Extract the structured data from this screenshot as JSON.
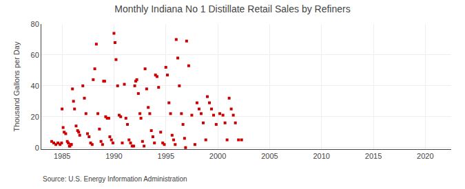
{
  "chart_data": {
    "type": "scatter",
    "title": "Monthly Indiana No 1 Distillate Retail Sales by Refiners",
    "ylabel": "Thousand Gallons per Day",
    "annotations": [
      "Source: U.S. Energy Information Administration"
    ],
    "color": "#cc0000",
    "marker": "square",
    "grid": true,
    "xlim": [
      1983.0,
      2022.5
    ],
    "ylim": [
      -1,
      80
    ],
    "xticks": [
      1985,
      1990,
      1995,
      2000,
      2005,
      2010,
      2015,
      2020
    ],
    "yticks": [
      0,
      20,
      40,
      60,
      80
    ],
    "x": [
      1984.0,
      1984.2,
      1984.4,
      1984.6,
      1984.8,
      1984.95,
      1985.0,
      1985.1,
      1985.2,
      1985.35,
      1985.5,
      1985.6,
      1985.7,
      1985.75,
      1985.85,
      1985.9,
      1986.0,
      1986.1,
      1986.2,
      1986.35,
      1986.5,
      1986.6,
      1986.7,
      1987.0,
      1987.15,
      1987.3,
      1987.45,
      1987.6,
      1987.75,
      1987.9,
      1988.0,
      1988.15,
      1988.3,
      1988.45,
      1988.6,
      1988.75,
      1988.9,
      1989.0,
      1989.1,
      1989.2,
      1989.35,
      1989.5,
      1989.6,
      1989.75,
      1989.9,
      1990.0,
      1990.1,
      1990.2,
      1990.35,
      1990.5,
      1990.65,
      1990.8,
      1991.0,
      1991.15,
      1991.3,
      1991.45,
      1991.6,
      1991.75,
      1991.9,
      1992.0,
      1992.1,
      1992.2,
      1992.35,
      1992.5,
      1992.6,
      1992.75,
      1992.9,
      1993.0,
      1993.15,
      1993.3,
      1993.45,
      1993.6,
      1993.75,
      1993.9,
      1994.0,
      1994.15,
      1994.3,
      1994.5,
      1994.7,
      1994.85,
      1995.0,
      1995.15,
      1995.3,
      1995.45,
      1995.6,
      1995.75,
      1995.9,
      1996.0,
      1996.15,
      1996.3,
      1996.5,
      1996.65,
      1996.8,
      1996.9,
      1997.0,
      1997.2,
      1997.5,
      1997.8,
      1998.0,
      1998.2,
      1998.4,
      1998.6,
      1998.85,
      1999.0,
      1999.2,
      1999.4,
      1999.6,
      1999.85,
      2000.2,
      2000.5,
      2000.7,
      2000.9,
      2001.1,
      2001.3,
      2001.5,
      2001.7,
      2002.0,
      2002.3
    ],
    "values": [
      4,
      3,
      2,
      3,
      2,
      3,
      25,
      13,
      10,
      9,
      4,
      3,
      1,
      1,
      2,
      2,
      38,
      30,
      25,
      14,
      11,
      10,
      8,
      40,
      32,
      22,
      9,
      7,
      3,
      2,
      44,
      51,
      67,
      22,
      12,
      4,
      2,
      43,
      43,
      20,
      19,
      19,
      7,
      5,
      3,
      74,
      68,
      57,
      40,
      21,
      20,
      3,
      41,
      19,
      15,
      5,
      3,
      1,
      1,
      40,
      43,
      44,
      35,
      22,
      19,
      4,
      1,
      51,
      38,
      26,
      22,
      11,
      7,
      3,
      47,
      46,
      39,
      10,
      3,
      2,
      52,
      47,
      29,
      22,
      8,
      5,
      2,
      70,
      58,
      40,
      22,
      15,
      6,
      0,
      69,
      53,
      21,
      2,
      29,
      25,
      22,
      16,
      5,
      33,
      29,
      25,
      21,
      15,
      22,
      21,
      16,
      5,
      32,
      25,
      21,
      16,
      5,
      5
    ]
  }
}
